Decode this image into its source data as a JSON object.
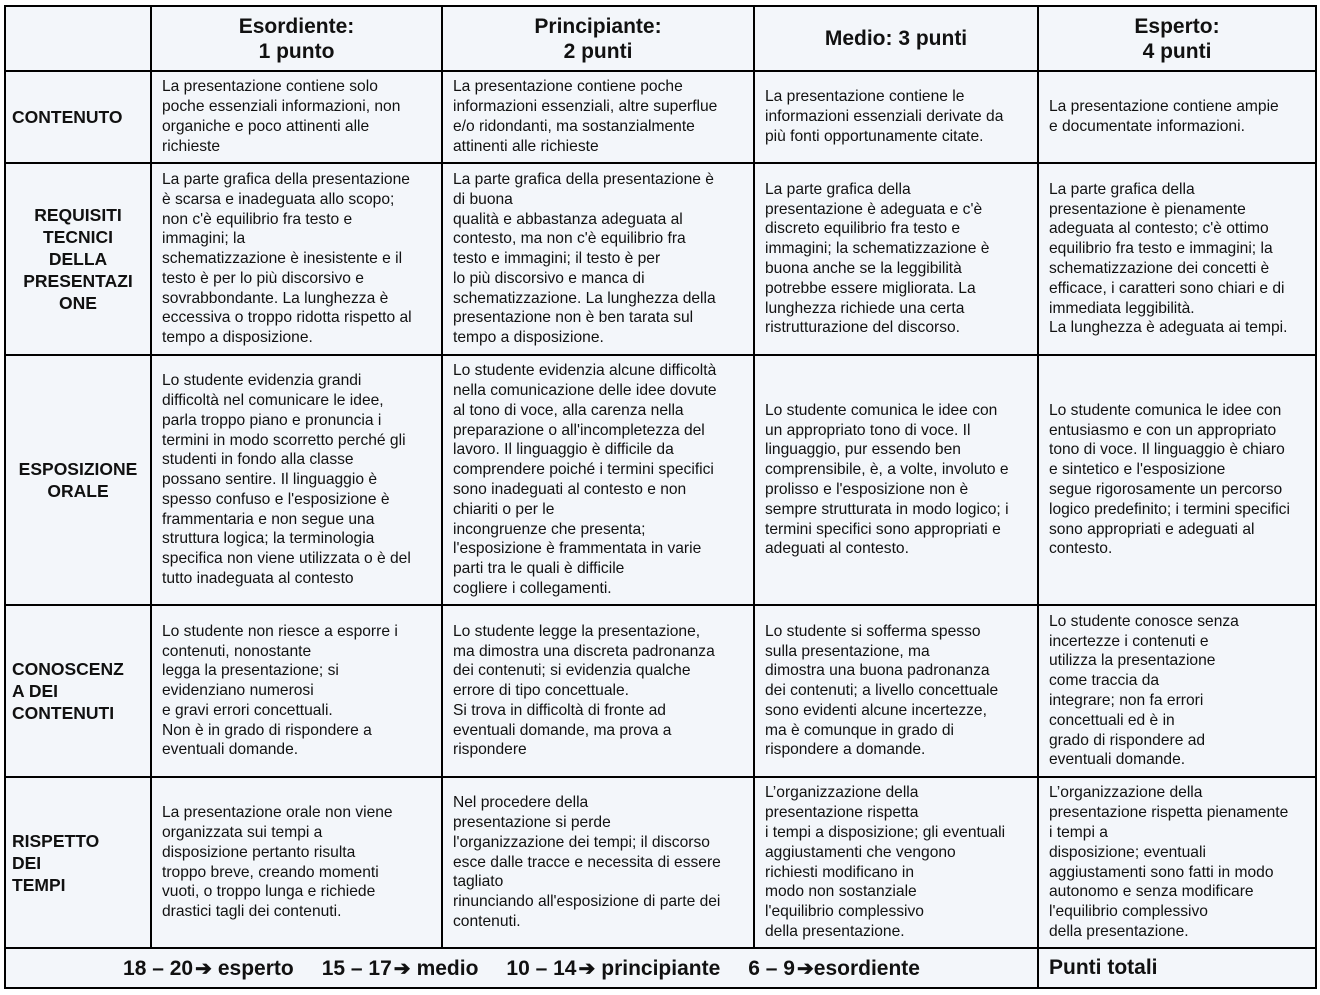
{
  "header": {
    "corner": "",
    "levels": [
      "Esordiente:\n1 punto",
      "Principiante:\n2 punti",
      "Medio: 3 punti",
      "Esperto:\n4 punti"
    ]
  },
  "rows": [
    {
      "label": "CONTENUTO",
      "align": "left",
      "cells": [
        "La presentazione contiene solo\npoche essenziali informazioni, non\norganiche e poco attinenti alle\nrichieste",
        "La presentazione contiene poche\ninformazioni essenziali, altre superflue\ne/o ridondanti, ma sostanzialmente\nattinenti alle richieste",
        "La presentazione contiene le\ninformazioni essenziali derivate da\npiù fonti opportunamente citate.",
        "La presentazione contiene ampie\ne documentate informazioni."
      ]
    },
    {
      "label": "REQUISITI\nTECNICI\nDELLA\nPRESENTAZI\nONE",
      "align": "center",
      "cells": [
        "La parte grafica della presentazione\nè scarsa e inadeguata allo scopo;\nnon c'è equilibrio fra testo e\nimmagini; la\nschematizzazione è inesistente e il\ntesto è per lo più discorsivo e\nsovrabbondante. La lunghezza è\neccessiva o troppo ridotta rispetto al\ntempo a disposizione.",
        "La parte grafica della presentazione è\ndi buona\nqualità e abbastanza adeguata al\ncontesto, ma non c'è equilibrio fra\ntesto e immagini; il testo è per\nlo più discorsivo e manca di\nschematizzazione. La lunghezza della\npresentazione non è ben tarata sul\ntempo a disposizione.",
        "La parte grafica della\npresentazione è adeguata e c'è\ndiscreto equilibrio fra testo e\nimmagini; la schematizzazione è\nbuona anche se la leggibilità\npotrebbe essere migliorata. La\nlunghezza richiede una certa\nristrutturazione del discorso.",
        "La parte grafica della\npresentazione è pienamente\nadeguata al contesto; c'è ottimo\nequilibrio fra testo e immagini; la\nschematizzazione dei concetti è\nefficace, i caratteri sono chiari e di\nimmediata leggibilità.\nLa lunghezza è adeguata ai tempi."
      ]
    },
    {
      "label": "ESPOSIZIONE\nORALE",
      "align": "center",
      "cells": [
        "Lo studente evidenzia grandi\ndifficoltà nel comunicare le idee,\nparla troppo piano e pronuncia i\ntermini in modo scorretto perché gli\nstudenti in fondo alla classe\npossano sentire. Il linguaggio è\nspesso confuso e l'esposizione è\nframmentaria e non segue una\nstruttura logica; la terminologia\nspecifica non viene utilizzata o è del\ntutto inadeguata al contesto",
        "Lo studente evidenzia alcune difficoltà\nnella comunicazione delle idee dovute\nal tono di voce, alla carenza nella\npreparazione o all'incompletezza del\nlavoro. Il linguaggio è difficile da\ncomprendere poiché i termini specifici\nsono inadeguati al contesto e non\nchiariti o per le\nincongruenze che presenta;\nl'esposizione è frammentata in varie\nparti tra le quali è difficile\ncogliere i collegamenti.",
        "Lo studente comunica le idee con\nun appropriato tono di voce. Il\nlinguaggio, pur essendo ben\ncomprensibile, è, a volte, involuto e\nprolisso e l'esposizione non è\nsempre strutturata in modo logico; i\ntermini specifici sono appropriati e\nadeguati al contesto.",
        "Lo studente comunica le idee con\nentusiasmo e con un appropriato\ntono di voce. Il linguaggio è chiaro\ne sintetico e l'esposizione\nsegue rigorosamente un percorso\nlogico predefinito; i termini specifici\nsono appropriati e adeguati al\ncontesto."
      ]
    },
    {
      "label": "CONOSCENZ\nA DEI\nCONTENUTI",
      "align": "left",
      "cells": [
        "Lo studente non riesce a esporre i\ncontenuti, nonostante\nlegga la presentazione; si\nevidenziano numerosi\ne gravi errori concettuali.\nNon è in grado di rispondere a\neventuali domande.",
        "Lo studente legge la presentazione,\nma dimostra una discreta padronanza\ndei contenuti; si evidenzia qualche\nerrore di tipo concettuale.\nSi trova in difficoltà di fronte ad\neventuali domande, ma prova a\nrispondere",
        "Lo studente si sofferma spesso\nsulla presentazione, ma\ndimostra una buona padronanza\ndei contenuti; a livello concettuale\nsono evidenti alcune incertezze,\nma è comunque in grado di\nrispondere a domande.",
        "Lo studente conosce senza\nincertezze i contenuti e\nutilizza la presentazione\ncome traccia da\nintegrare; non fa errori\nconcettuali ed è in\ngrado di rispondere ad\neventuali domande."
      ]
    },
    {
      "label": "RISPETTO\nDEI\nTEMPI",
      "align": "left",
      "cells": [
        "La presentazione orale non viene\norganizzata sui tempi a\ndisposizione pertanto risulta\ntroppo breve, creando momenti\nvuoti, o troppo lunga e richiede\ndrastici tagli dei contenuti.",
        "Nel procedere della\npresentazione si perde\nl'organizzazione dei tempi; il discorso\nesce dalle tracce e necessita di essere\ntagliato\nrinunciando all'esposizione di parte dei\ncontenuti.",
        "L’organizzazione della\npresentazione rispetta\ni tempi a disposizione; gli eventuali\naggiustamenti che vengono\nrichiesti  modificano in\nmodo non sostanziale\nl'equilibrio complessivo\ndella presentazione.",
        "L’organizzazione della\npresentazione rispetta pienamente\ni tempi a\ndisposizione; eventuali\naggiustamenti sono fatti in modo\nautonomo e senza modificare\nl'equilibrio complessivo\ndella presentazione."
      ]
    }
  ],
  "footer": {
    "scale": [
      {
        "range": "18 – 20",
        "level": "esperto"
      },
      {
        "range": "15 – 17",
        "level": "medio"
      },
      {
        "range": "10 – 14",
        "level": "principiante"
      },
      {
        "range": "6 – 9",
        "level": "esordiente"
      }
    ],
    "arrow_icon": "➔",
    "total_label": "Punti totali"
  }
}
